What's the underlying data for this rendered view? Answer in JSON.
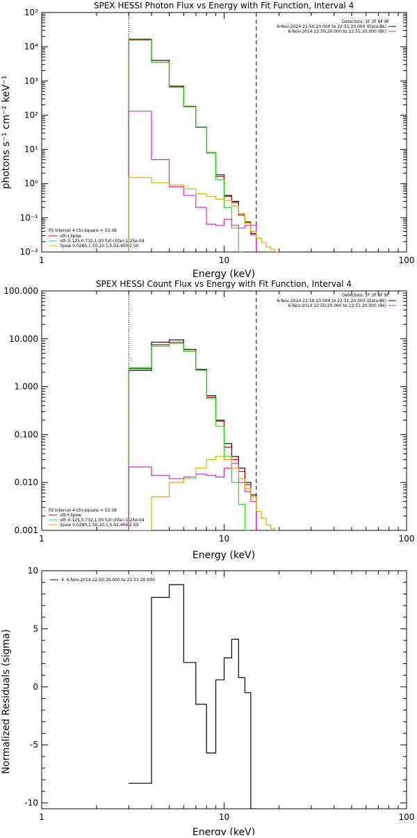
{
  "chart_data": [
    {
      "type": "line",
      "step": true,
      "title": "SPEX HESSI Photon Flux vs Energy with Fit Function, Interval 4",
      "xlabel": "Energy (keV)",
      "ylabel": "photons s⁻¹ cm⁻² keV⁻¹",
      "xscale": "log",
      "yscale": "log",
      "xlim": [
        1,
        100
      ],
      "ylim": [
        0.01,
        100000
      ],
      "x_ticks": [
        1,
        10,
        100
      ],
      "x_tick_labels": [
        "1",
        "10",
        "100"
      ],
      "y_ticks": [
        0.01,
        0.1,
        1,
        10,
        100,
        1000,
        10000,
        100000
      ],
      "y_tick_labels": [
        "10⁻²",
        "10⁻¹",
        "10⁰",
        "10¹",
        "10²",
        "10³",
        "10⁴",
        "10⁵"
      ],
      "vlines": [
        {
          "x": 3,
          "style": "dotted"
        },
        {
          "x": 15,
          "style": "dashed"
        }
      ],
      "legend_top_right": [
        "Detectors: 1F 3F 8F 9F",
        "6-Nov-2014 22:50:20.000 to 22:51:20.000 (Data-Bk)",
        "6-Nov-2014 22:50:20.000 to 22:51:20.000 (Bk)"
      ],
      "legend_bottom_left": [
        "Fit Interval  4   Chi-square = 53.38",
        "vth+3pow",
        "vth 0.125,0.732,1.00  full chfan 1.25e-04",
        "3pow 0.0280,1.50,10.1,5.02,400,2.50"
      ],
      "edges": [
        3,
        4,
        5,
        6,
        7,
        8,
        9,
        10,
        11,
        12,
        13,
        14,
        15,
        16,
        17,
        18,
        19,
        20
      ],
      "series": [
        {
          "name": "",
          "color": "#000000",
          "values": [
            16000,
            4000,
            700,
            180,
            45,
            8,
            1.8,
            0.45,
            0.3,
            0.13,
            0.075,
            0.035,
            null,
            null,
            null,
            null,
            null
          ]
        },
        {
          "name": "",
          "color": "#cc0000",
          "values": [
            16500,
            3500,
            650,
            175,
            44,
            7.8,
            1.6,
            0.42,
            0.28,
            0.12,
            0.07,
            0.032,
            null,
            null,
            null,
            null,
            null
          ]
        },
        {
          "name": "",
          "color": "#22dd22",
          "values": [
            17000,
            3500,
            650,
            175,
            44,
            7.8,
            1.3,
            0.2,
            0.05,
            0.009,
            null,
            null,
            null,
            null,
            null,
            null,
            null
          ]
        },
        {
          "name": "",
          "color": "#dd22dd",
          "values": [
            130,
            5,
            0.8,
            0.45,
            0.2,
            0.065,
            0.06,
            0.09,
            0.06,
            0.05,
            0.06,
            0.06,
            null,
            null,
            null,
            null,
            null
          ]
        },
        {
          "name": "",
          "color": "#ddaa00",
          "values": [
            1.5,
            1.05,
            0.9,
            0.7,
            0.5,
            0.42,
            0.35,
            0.32,
            0.22,
            0.13,
            0.07,
            0.04,
            0.025,
            0.019,
            0.014,
            0.012,
            0.01
          ]
        }
      ]
    },
    {
      "type": "line",
      "step": true,
      "title": "SPEX HESSI Count Flux vs Energy with Fit Function, Interval 4",
      "xlabel": "Energy (keV)",
      "ylabel": "",
      "xscale": "log",
      "yscale": "log",
      "xlim": [
        1,
        100
      ],
      "ylim": [
        0.001,
        100
      ],
      "x_ticks": [
        1,
        10,
        100
      ],
      "x_tick_labels": [
        "1",
        "10",
        "100"
      ],
      "y_ticks": [
        0.001,
        0.01,
        0.1,
        1,
        10,
        100
      ],
      "y_tick_labels": [
        "0.001",
        "0.010",
        "0.100",
        "1.000",
        "10.000",
        "100.000"
      ],
      "vlines": [
        {
          "x": 3,
          "style": "dotted"
        },
        {
          "x": 15,
          "style": "dashed"
        }
      ],
      "legend_top_right": [
        "Detectors: 1F 3F 8F 9F",
        "6-Nov-2014 22:50:20.000 to 22:51:20.000 (Data-Bk)",
        "6-Nov-2014 22:50:20.000 to 22:51:20.000 (Bk)"
      ],
      "legend_bottom_left": [
        "Fit Interval  4   Chi-square = 53.38",
        "vth+3pow",
        "vth 0.125,0.732,1.00  full chfan 1.25e-04",
        "3pow 0.0280,1.50,10.1,5.02,400,2.50"
      ],
      "edges": [
        3,
        4,
        5,
        6,
        7,
        8,
        9,
        10,
        11,
        12,
        13,
        14,
        15,
        16,
        17,
        18,
        19,
        20
      ],
      "series": [
        {
          "name": "",
          "color": "#000000",
          "values": [
            2.2,
            8.5,
            9.5,
            6,
            2.3,
            0.65,
            0.2,
            0.065,
            0.035,
            0.02,
            0.01,
            0.0055,
            null,
            null,
            null,
            null,
            null
          ]
        },
        {
          "name": "",
          "color": "#cc0000",
          "values": [
            2.4,
            7.5,
            8.5,
            5.5,
            2.2,
            0.6,
            0.19,
            0.055,
            0.03,
            0.017,
            0.009,
            0.005,
            null,
            null,
            null,
            null,
            null
          ]
        },
        {
          "name": "",
          "color": "#22dd22",
          "values": [
            2.5,
            7,
            8,
            5.5,
            2.2,
            0.58,
            0.15,
            0.035,
            0.01,
            0.0035,
            0.001,
            null,
            null,
            null,
            null,
            null,
            null
          ]
        },
        {
          "name": "",
          "color": "#dd22dd",
          "values": [
            0.021,
            0.014,
            0.012,
            0.013,
            0.015,
            0.014,
            0.013,
            0.02,
            0.025,
            0.01,
            0.0065,
            0.004,
            null,
            null,
            null,
            null,
            null
          ]
        },
        {
          "name": "",
          "color": "#ddaa00",
          "values": [
            0.001,
            0.005,
            0.01,
            0.012,
            0.02,
            0.03,
            0.035,
            0.03,
            0.02,
            0.012,
            0.0075,
            0.005,
            0.0025,
            0.0018,
            0.0013,
            0.0011,
            0.001
          ]
        }
      ]
    },
    {
      "type": "line",
      "step": true,
      "title": "",
      "xlabel": "Energy (keV)",
      "ylabel": "Normalized Residuals (sigma)",
      "xscale": "log",
      "yscale": "linear",
      "xlim": [
        1,
        100
      ],
      "ylim": [
        -10.5,
        10
      ],
      "x_ticks": [
        1,
        10,
        100
      ],
      "x_tick_labels": [
        "1",
        "10",
        "100"
      ],
      "y_ticks": [
        -10,
        -5,
        0,
        5,
        10
      ],
      "y_tick_labels": [
        "-10",
        "-5",
        "0",
        "5",
        "10"
      ],
      "legend_top_left": [
        "4.  6-Nov-2014 22:50:20.000 to 22:51:20.000"
      ],
      "edges": [
        3,
        4,
        5,
        6,
        7,
        8,
        9,
        10,
        11,
        12,
        13,
        14,
        15
      ],
      "series": [
        {
          "name": "",
          "color": "#000000",
          "values": [
            -8.3,
            7.7,
            8.8,
            2.1,
            -1.5,
            -5.7,
            0.6,
            2.5,
            4.1,
            0.8,
            -0.5,
            -10.5
          ]
        }
      ]
    }
  ]
}
